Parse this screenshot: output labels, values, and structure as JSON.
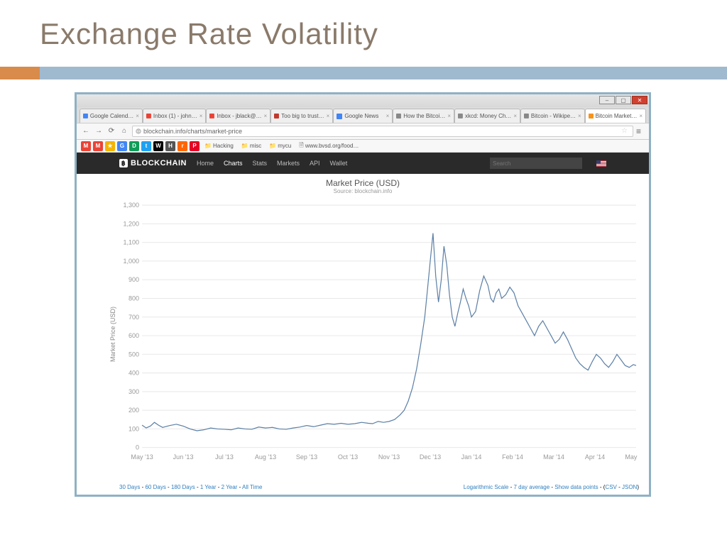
{
  "slide": {
    "title": "Exchange Rate Volatility",
    "title_color": "#8a7a6a",
    "title_fontsize": 42,
    "divider_accent": "#d88b4a",
    "divider_main": "#9fb9cf",
    "shot_border": "#8fb1c4"
  },
  "browser": {
    "tabs": [
      {
        "label": "Google Calend…",
        "favicon": "#4285f4"
      },
      {
        "label": "Inbox (1) - john…",
        "favicon": "#ea4335"
      },
      {
        "label": "Inbox - jblack@…",
        "favicon": "#ea4335"
      },
      {
        "label": "Too big to trust…",
        "favicon": "#c0392b"
      },
      {
        "label": "Google News",
        "favicon": "#4285f4"
      },
      {
        "label": "How the Bitcoi…",
        "favicon": "#888888"
      },
      {
        "label": "xkcd: Money Ch…",
        "favicon": "#888888"
      },
      {
        "label": "Bitcoin - Wikipe…",
        "favicon": "#888888"
      },
      {
        "label": "Bitcoin Market…",
        "favicon": "#f7931a",
        "active": true
      }
    ],
    "url": "blockchain.info/charts/market-price",
    "winbtns": {
      "min": "–",
      "max": "▢",
      "close": "✕"
    },
    "bookmarks": [
      {
        "color": "#ea4335",
        "t": "M"
      },
      {
        "color": "#ea4335",
        "t": "M"
      },
      {
        "color": "#f4b400",
        "t": "★"
      },
      {
        "color": "#4285f4",
        "t": "G"
      },
      {
        "color": "#0f9d58",
        "t": "D"
      },
      {
        "color": "#1da1f2",
        "t": "t"
      },
      {
        "color": "#000000",
        "t": "W"
      },
      {
        "color": "#555555",
        "t": "H"
      },
      {
        "color": "#ff6600",
        "t": "r"
      },
      {
        "color": "#e60023",
        "t": "P"
      }
    ],
    "folders": [
      "Hacking",
      "misc",
      "mycu"
    ],
    "bmk_url": "www.bvsd.org/food…"
  },
  "site": {
    "brand": "BLOCKCHAIN",
    "nav": [
      "Home",
      "Charts",
      "Stats",
      "Markets",
      "API",
      "Wallet"
    ],
    "active_nav": "Charts",
    "search_placeholder": "Search",
    "flag_colors": {
      "a": "#b22234",
      "b": "#ffffff",
      "c": "#3c3b6e"
    }
  },
  "chart": {
    "type": "line",
    "title": "Market Price (USD)",
    "subtitle": "Source: blockchain.info",
    "yaxis_title": "Market Price (USD)",
    "ylim": [
      0,
      1300
    ],
    "ytick_step": 100,
    "yticks": [
      0,
      100,
      200,
      300,
      400,
      500,
      600,
      700,
      800,
      900,
      1000,
      1100,
      1200,
      1300
    ],
    "xticks": [
      "May '13",
      "Jun '13",
      "Jul '13",
      "Aug '13",
      "Sep '13",
      "Oct '13",
      "Nov '13",
      "Dec '13",
      "Jan '14",
      "Feb '14",
      "Mar '14",
      "Apr '14",
      "May '14"
    ],
    "line_color": "#5b7fa6",
    "line_width": 1.2,
    "grid_color": "#e8e8e8",
    "axis_color": "#dddddd",
    "background_color": "#ffffff",
    "label_color": "#999999",
    "label_fontsize": 9,
    "series": [
      [
        0,
        120
      ],
      [
        3,
        105
      ],
      [
        6,
        115
      ],
      [
        9,
        135
      ],
      [
        12,
        120
      ],
      [
        15,
        108
      ],
      [
        20,
        118
      ],
      [
        25,
        125
      ],
      [
        30,
        115
      ],
      [
        35,
        100
      ],
      [
        40,
        90
      ],
      [
        45,
        95
      ],
      [
        50,
        105
      ],
      [
        55,
        100
      ],
      [
        60,
        98
      ],
      [
        65,
        95
      ],
      [
        70,
        105
      ],
      [
        75,
        100
      ],
      [
        80,
        98
      ],
      [
        85,
        110
      ],
      [
        90,
        105
      ],
      [
        95,
        108
      ],
      [
        100,
        100
      ],
      [
        105,
        98
      ],
      [
        110,
        105
      ],
      [
        115,
        110
      ],
      [
        120,
        118
      ],
      [
        125,
        112
      ],
      [
        130,
        120
      ],
      [
        135,
        128
      ],
      [
        140,
        125
      ],
      [
        145,
        130
      ],
      [
        150,
        125
      ],
      [
        155,
        128
      ],
      [
        160,
        135
      ],
      [
        165,
        130
      ],
      [
        168,
        128
      ],
      [
        172,
        140
      ],
      [
        176,
        135
      ],
      [
        180,
        140
      ],
      [
        184,
        150
      ],
      [
        188,
        175
      ],
      [
        191,
        200
      ],
      [
        194,
        250
      ],
      [
        197,
        320
      ],
      [
        200,
        420
      ],
      [
        203,
        550
      ],
      [
        206,
        700
      ],
      [
        208,
        850
      ],
      [
        210,
        1000
      ],
      [
        212,
        1150
      ],
      [
        214,
        920
      ],
      [
        216,
        780
      ],
      [
        218,
        900
      ],
      [
        220,
        1080
      ],
      [
        222,
        980
      ],
      [
        224,
        820
      ],
      [
        226,
        700
      ],
      [
        228,
        650
      ],
      [
        230,
        720
      ],
      [
        232,
        780
      ],
      [
        234,
        850
      ],
      [
        236,
        800
      ],
      [
        238,
        760
      ],
      [
        240,
        700
      ],
      [
        243,
        730
      ],
      [
        246,
        840
      ],
      [
        249,
        920
      ],
      [
        252,
        870
      ],
      [
        254,
        800
      ],
      [
        256,
        780
      ],
      [
        258,
        830
      ],
      [
        260,
        850
      ],
      [
        262,
        800
      ],
      [
        265,
        820
      ],
      [
        268,
        860
      ],
      [
        271,
        830
      ],
      [
        274,
        760
      ],
      [
        277,
        720
      ],
      [
        280,
        680
      ],
      [
        283,
        640
      ],
      [
        286,
        600
      ],
      [
        289,
        650
      ],
      [
        292,
        680
      ],
      [
        295,
        640
      ],
      [
        298,
        600
      ],
      [
        301,
        560
      ],
      [
        304,
        580
      ],
      [
        307,
        620
      ],
      [
        310,
        580
      ],
      [
        313,
        530
      ],
      [
        316,
        480
      ],
      [
        319,
        450
      ],
      [
        322,
        430
      ],
      [
        325,
        415
      ],
      [
        328,
        460
      ],
      [
        331,
        500
      ],
      [
        334,
        480
      ],
      [
        337,
        450
      ],
      [
        340,
        430
      ],
      [
        343,
        460
      ],
      [
        346,
        500
      ],
      [
        349,
        470
      ],
      [
        352,
        440
      ],
      [
        355,
        430
      ],
      [
        358,
        445
      ],
      [
        360,
        440
      ]
    ],
    "footer_left": [
      "30 Days",
      "60 Days",
      "180 Days",
      "1 Year",
      "2 Year",
      "All Time"
    ],
    "footer_right_text": [
      "Logarithmic Scale",
      "7 day average",
      "Show data points"
    ],
    "footer_right_dl": [
      "CSV",
      "JSON"
    ]
  }
}
